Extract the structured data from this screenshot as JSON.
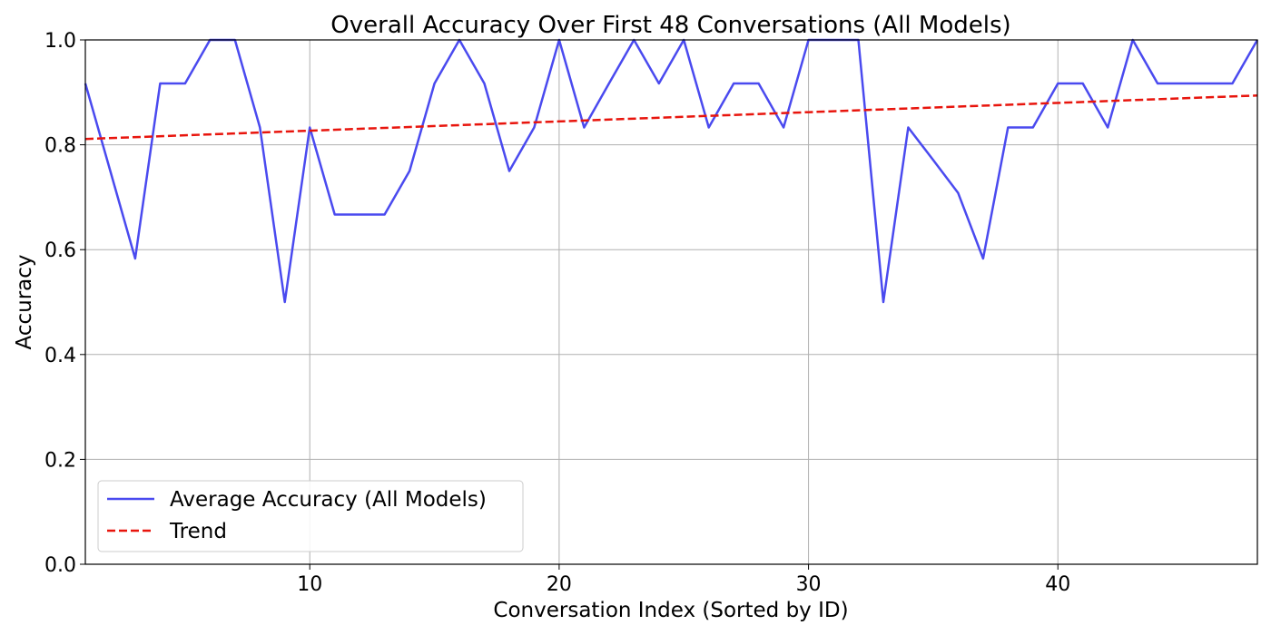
{
  "chart_data": {
    "type": "line",
    "title": "Overall Accuracy Over First 48 Conversations (All Models)",
    "xlabel": "Conversation Index (Sorted by ID)",
    "ylabel": "Accuracy",
    "xlim": [
      1,
      48
    ],
    "ylim": [
      0.0,
      1.0
    ],
    "x_ticks": [
      10,
      20,
      30,
      40
    ],
    "x_tick_labels": [
      "10",
      "20",
      "30",
      "40"
    ],
    "y_ticks": [
      0.0,
      0.2,
      0.4,
      0.6,
      0.8,
      1.0
    ],
    "y_tick_labels": [
      "0.0",
      "0.2",
      "0.4",
      "0.6",
      "0.8",
      "1.0"
    ],
    "grid": true,
    "legend_position": "lower-left",
    "x": [
      1,
      2,
      3,
      4,
      5,
      6,
      7,
      8,
      9,
      10,
      11,
      12,
      13,
      14,
      15,
      16,
      17,
      18,
      19,
      20,
      21,
      22,
      23,
      24,
      25,
      26,
      27,
      28,
      29,
      30,
      31,
      32,
      33,
      34,
      35,
      36,
      37,
      38,
      39,
      40,
      41,
      42,
      43,
      44,
      45,
      46,
      47,
      48
    ],
    "series": [
      {
        "name": "Average Accuracy (All Models)",
        "color": "#4a4aef",
        "style": "solid",
        "values": [
          0.917,
          0.75,
          0.583,
          0.917,
          0.917,
          1.0,
          1.0,
          0.833,
          0.5,
          0.833,
          0.667,
          0.667,
          0.667,
          0.75,
          0.917,
          1.0,
          0.917,
          0.75,
          0.833,
          1.0,
          0.833,
          0.917,
          1.0,
          0.917,
          1.0,
          0.833,
          0.917,
          0.917,
          0.833,
          1.0,
          1.0,
          1.0,
          0.5,
          0.833,
          0.771,
          0.708,
          0.583,
          0.833,
          0.833,
          0.917,
          0.917,
          0.833,
          1.0,
          0.917,
          0.917,
          0.917,
          0.917,
          1.0
        ]
      },
      {
        "name": "Trend",
        "color": "#e8150d",
        "style": "dashed",
        "values_at_xlim": [
          0.811,
          0.894
        ]
      }
    ]
  }
}
